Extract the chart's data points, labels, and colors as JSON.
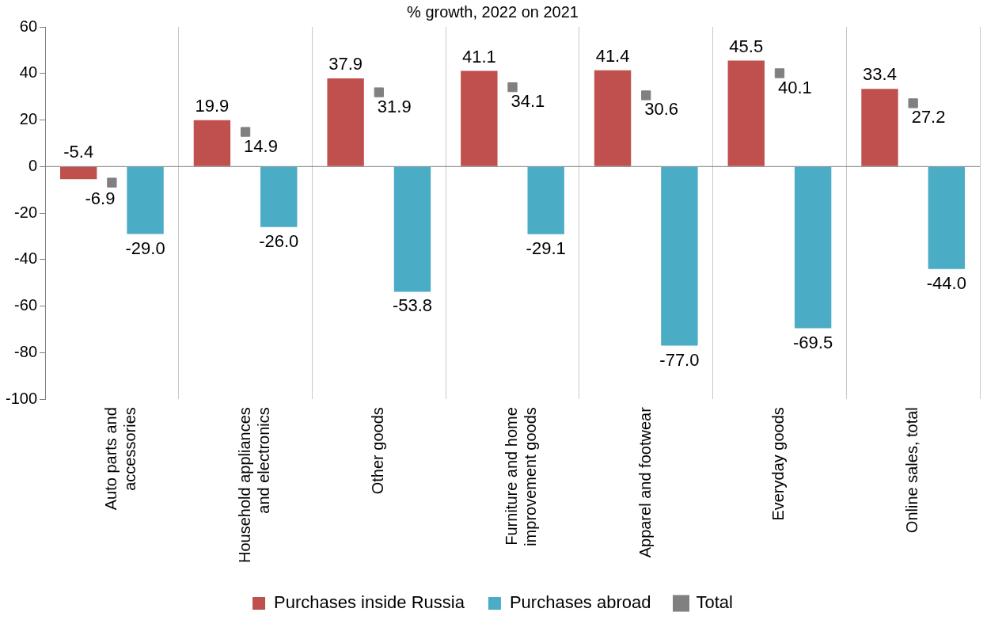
{
  "chart_data": {
    "type": "bar",
    "title": "% growth, 2022 on 2021",
    "categories": [
      "Auto parts and accessories",
      "Household appliances and electronics",
      "Other goods",
      "Furniture and home improvement goods",
      "Apparel and footwear",
      "Everyday goods",
      "Online sales, total"
    ],
    "series": [
      {
        "name": "Purchases inside Russia",
        "color": "#c0504d",
        "values": [
          -5.4,
          19.9,
          37.9,
          41.1,
          41.4,
          45.5,
          33.4
        ],
        "value_labels": [
          "-5.4",
          "19.9",
          "37.9",
          "41.1",
          "41.4",
          "45.5",
          "33.4"
        ]
      },
      {
        "name": "Purchases abroad",
        "color": "#4bacc6",
        "values": [
          -29.0,
          -26.0,
          -53.8,
          -29.1,
          -77.0,
          -69.5,
          -44.0
        ],
        "value_labels": [
          "-29.0",
          "-26.0",
          "-53.8",
          "-29.1",
          "-77.0",
          "-69.5",
          "-44.0"
        ]
      },
      {
        "name": "Total",
        "type": "scatter",
        "color": "#808080",
        "marker": "square",
        "x": [
          "Auto parts and accessories",
          "Household appliances and electronics",
          "Other goods",
          "Furniture and home improvement goods",
          "Apparel and footwear",
          "Everyday goods",
          "Online sales, total"
        ],
        "values": [
          -6.9,
          14.9,
          31.9,
          34.1,
          30.6,
          40.1,
          27.2
        ],
        "value_labels": [
          "-6.9",
          "14.9",
          "31.9",
          "34.1",
          "30.6",
          "40.1",
          "27.2"
        ]
      }
    ],
    "ylim": [
      -100,
      60
    ],
    "yticks": [
      -100,
      -80,
      -60,
      -40,
      -20,
      0,
      20,
      40,
      60
    ],
    "grid": "x",
    "legend": "bottom"
  }
}
